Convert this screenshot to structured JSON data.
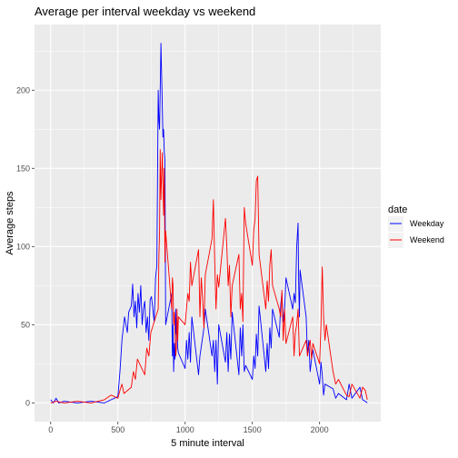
{
  "chart_data": {
    "type": "line",
    "title": "Average per interval weekday vs weekend",
    "xlabel": "5 minute interval",
    "ylabel": "Average steps",
    "xlim": [
      -120,
      2455
    ],
    "ylim": [
      -12,
      242
    ],
    "xticks": [
      0,
      500,
      1000,
      1500,
      2000
    ],
    "yticks": [
      0,
      50,
      100,
      150,
      200
    ],
    "grid": true,
    "legend": {
      "title": "date",
      "position": "right"
    },
    "series": [
      {
        "name": "Weekday",
        "color": "#0000FF",
        "x": [
          0,
          20,
          40,
          60,
          100,
          200,
          300,
          400,
          450,
          500,
          515,
          530,
          550,
          560,
          570,
          580,
          600,
          610,
          620,
          630,
          640,
          650,
          660,
          670,
          680,
          690,
          700,
          710,
          720,
          730,
          740,
          750,
          760,
          770,
          780,
          790,
          800,
          805,
          810,
          815,
          820,
          830,
          835,
          840,
          845,
          850,
          855,
          900,
          905,
          910,
          915,
          920,
          925,
          930,
          935,
          940,
          945,
          950,
          1000,
          1010,
          1020,
          1030,
          1040,
          1050,
          1100,
          1110,
          1120,
          1130,
          1140,
          1150,
          1200,
          1210,
          1220,
          1230,
          1240,
          1250,
          1300,
          1310,
          1320,
          1330,
          1340,
          1350,
          1400,
          1410,
          1420,
          1430,
          1440,
          1450,
          1500,
          1510,
          1520,
          1530,
          1540,
          1550,
          1600,
          1610,
          1620,
          1630,
          1640,
          1650,
          1700,
          1710,
          1720,
          1730,
          1740,
          1750,
          1800,
          1810,
          1820,
          1830,
          1840,
          1845,
          1850,
          1855,
          1900,
          1910,
          1920,
          1930,
          1940,
          1950,
          2000,
          2010,
          2020,
          2030,
          2040,
          2100,
          2120,
          2140,
          2200,
          2220,
          2240,
          2300,
          2320,
          2340,
          2355
        ],
        "y": [
          2,
          0,
          3,
          0,
          1,
          0,
          1,
          0,
          2,
          4,
          20,
          40,
          55,
          50,
          45,
          58,
          62,
          76,
          55,
          65,
          48,
          70,
          58,
          75,
          50,
          60,
          65,
          45,
          55,
          40,
          66,
          68,
          60,
          52,
          80,
          88,
          200,
          180,
          175,
          200,
          230,
          190,
          170,
          175,
          160,
          155,
          50,
          70,
          30,
          50,
          20,
          38,
          28,
          60,
          44,
          48,
          35,
          32,
          22,
          40,
          28,
          45,
          26,
          55,
          18,
          30,
          36,
          42,
          48,
          60,
          30,
          40,
          20,
          40,
          12,
          50,
          26,
          45,
          20,
          44,
          28,
          58,
          18,
          48,
          30,
          50,
          20,
          24,
          15,
          30,
          22,
          44,
          30,
          62,
          20,
          38,
          22,
          48,
          35,
          60,
          42,
          62,
          70,
          52,
          60,
          80,
          60,
          70,
          64,
          100,
          115,
          75,
          55,
          85,
          55,
          30,
          40,
          20,
          28,
          34,
          12,
          26,
          18,
          5,
          12,
          9,
          3,
          6,
          2,
          12,
          3,
          10,
          2,
          1,
          0
        ]
      },
      {
        "name": "Weekend",
        "color": "#FF0000",
        "x": [
          0,
          40,
          100,
          200,
          300,
          400,
          450,
          500,
          515,
          530,
          545,
          600,
          615,
          630,
          645,
          700,
          715,
          730,
          745,
          800,
          805,
          810,
          815,
          820,
          830,
          835,
          840,
          845,
          850,
          855,
          900,
          905,
          910,
          915,
          920,
          925,
          930,
          935,
          940,
          945,
          950,
          1000,
          1010,
          1020,
          1030,
          1040,
          1050,
          1100,
          1110,
          1120,
          1130,
          1140,
          1150,
          1200,
          1210,
          1220,
          1230,
          1240,
          1250,
          1300,
          1310,
          1320,
          1330,
          1340,
          1350,
          1400,
          1410,
          1420,
          1430,
          1440,
          1450,
          1500,
          1510,
          1520,
          1530,
          1540,
          1550,
          1600,
          1610,
          1620,
          1630,
          1640,
          1650,
          1700,
          1710,
          1720,
          1730,
          1740,
          1750,
          1800,
          1810,
          1820,
          1830,
          1840,
          1850,
          1900,
          1910,
          1920,
          1930,
          1940,
          1950,
          2000,
          2010,
          2020,
          2030,
          2040,
          2050,
          2100,
          2120,
          2140,
          2200,
          2220,
          2240,
          2300,
          2320,
          2340,
          2355
        ],
        "y": [
          0,
          1,
          0,
          1,
          0,
          2,
          5,
          3,
          8,
          12,
          6,
          10,
          20,
          15,
          28,
          18,
          35,
          30,
          45,
          60,
          95,
          110,
          162,
          130,
          160,
          140,
          120,
          150,
          90,
          110,
          60,
          80,
          75,
          50,
          58,
          45,
          30,
          35,
          60,
          40,
          55,
          50,
          60,
          70,
          65,
          90,
          75,
          98,
          55,
          80,
          66,
          48,
          82,
          105,
          130,
          90,
          60,
          82,
          74,
          118,
          100,
          75,
          88,
          55,
          75,
          95,
          60,
          70,
          52,
          125,
          115,
          88,
          110,
          118,
          142,
          145,
          95,
          60,
          78,
          65,
          88,
          98,
          75,
          60,
          55,
          72,
          40,
          60,
          38,
          55,
          30,
          45,
          50,
          60,
          30,
          40,
          30,
          35,
          40,
          28,
          38,
          25,
          50,
          87,
          55,
          40,
          50,
          20,
          12,
          15,
          5,
          4,
          12,
          3,
          10,
          8,
          2
        ]
      }
    ]
  }
}
